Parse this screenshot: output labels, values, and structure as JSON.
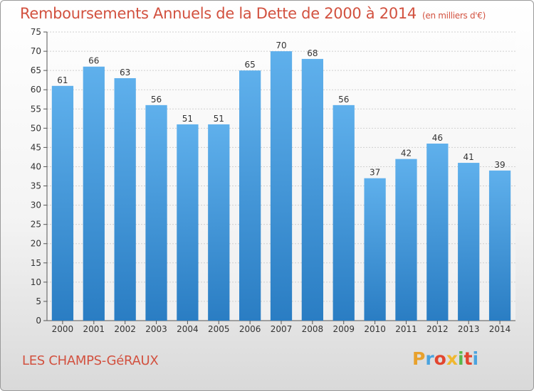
{
  "header": {
    "title": "Remboursements Annuels de la Dette de 2000 à 2014",
    "unit": "(en milliers d'€)"
  },
  "footer": {
    "place_name": "LES CHAMPS-GéRAUX",
    "logo_text": "Proxiti"
  },
  "colors": {
    "title": "#d2513f",
    "bar_light": "#5fb0ec",
    "bar_dark": "#2a7dc3",
    "logo_letters": [
      "#e8a12c",
      "#4aa3df",
      "#e2452f",
      "#f0b72f",
      "#5bb84a",
      "#e2452f",
      "#4aa3df"
    ]
  },
  "chart_data": {
    "type": "bar",
    "title": "Remboursements Annuels de la Dette de 2000 à 2014",
    "xlabel": "",
    "ylabel": "",
    "categories": [
      "2000",
      "2001",
      "2002",
      "2003",
      "2004",
      "2005",
      "2006",
      "2007",
      "2008",
      "2009",
      "2010",
      "2011",
      "2012",
      "2013",
      "2014"
    ],
    "values": [
      61,
      66,
      63,
      56,
      51,
      51,
      65,
      70,
      68,
      56,
      37,
      42,
      46,
      41,
      39
    ],
    "ylim": [
      0,
      75
    ],
    "yticks": [
      0,
      5,
      10,
      15,
      20,
      25,
      30,
      35,
      40,
      45,
      50,
      55,
      60,
      65,
      70,
      75
    ],
    "grid": true,
    "legend": "none"
  }
}
